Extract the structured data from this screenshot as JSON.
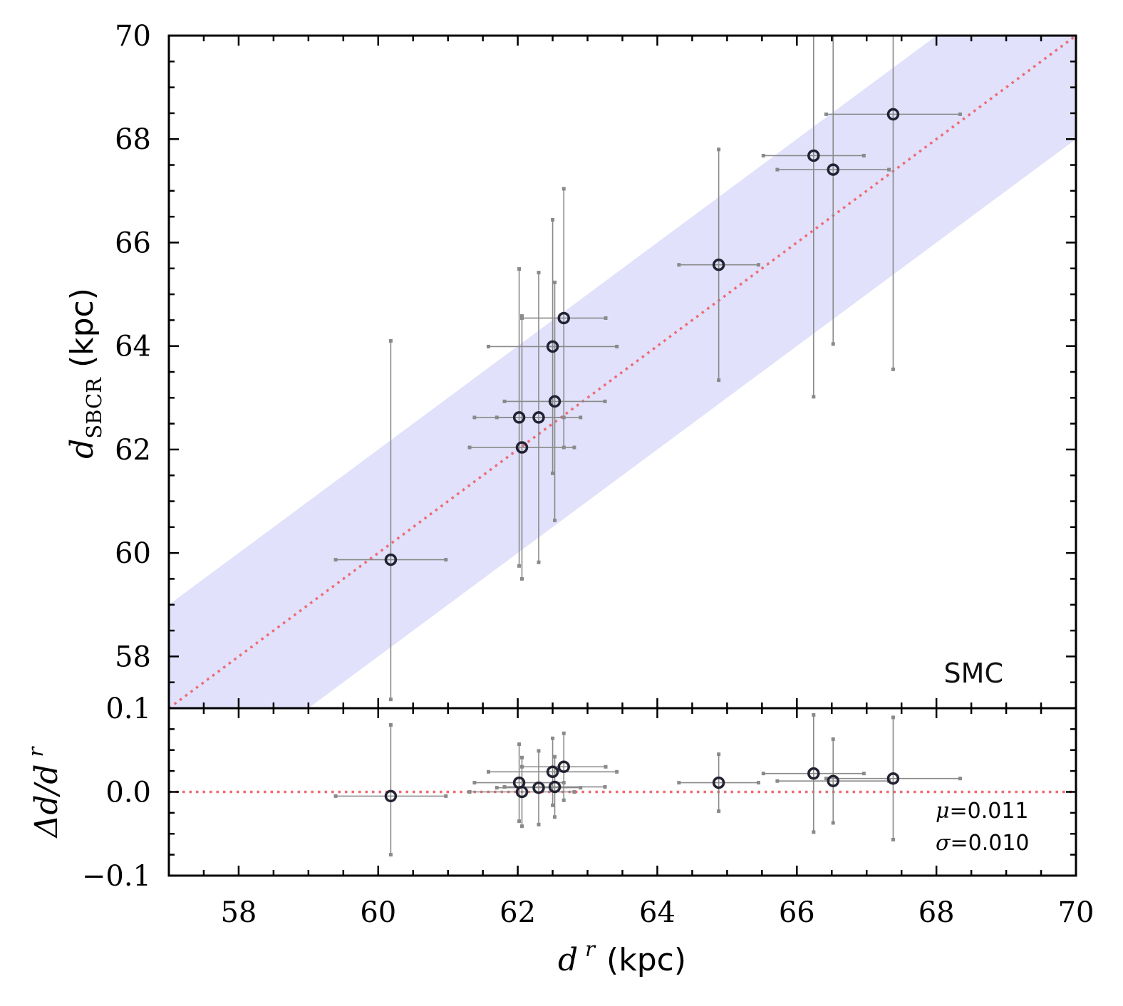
{
  "chart_data": [
    {
      "panel": "main",
      "type": "scatter",
      "xlabel": {
        "var": "d",
        "sup": "r",
        "unit": "(kpc)"
      },
      "ylabel": {
        "var": "d",
        "sub": "SBCR",
        "unit": "(kpc)"
      },
      "xlim": [
        57,
        70
      ],
      "ylim": [
        57,
        70
      ],
      "xticks": [
        "58",
        "60",
        "62",
        "64",
        "66",
        "68",
        "70"
      ],
      "yticks": [
        "58",
        "60",
        "62",
        "64",
        "66",
        "68",
        "70"
      ],
      "annotation": "SMC",
      "one_to_one_line": {
        "color": "#ef6b73",
        "style": "dotted"
      },
      "band": {
        "half_width": 2,
        "color": "#e1e1fb"
      },
      "points": [
        {
          "x": 60.18,
          "y": 59.87,
          "xerr": 0.79,
          "yerr_lo": 2.7,
          "yerr_hi": 4.23
        },
        {
          "x": 62.02,
          "y": 62.62,
          "xerr": 0.64,
          "yerr_lo": 2.87,
          "yerr_hi": 2.87
        },
        {
          "x": 62.06,
          "y": 62.04,
          "xerr": 0.75,
          "yerr_lo": 2.54,
          "yerr_hi": 2.54
        },
        {
          "x": 62.3,
          "y": 62.62,
          "xerr": 0.6,
          "yerr_lo": 2.8,
          "yerr_hi": 2.8
        },
        {
          "x": 62.5,
          "y": 63.99,
          "xerr": 0.92,
          "yerr_lo": 2.45,
          "yerr_hi": 2.45
        },
        {
          "x": 62.53,
          "y": 62.93,
          "xerr": 0.72,
          "yerr_lo": 2.3,
          "yerr_hi": 2.3
        },
        {
          "x": 62.66,
          "y": 64.54,
          "xerr": 0.6,
          "yerr_lo": 2.5,
          "yerr_hi": 2.5
        },
        {
          "x": 64.88,
          "y": 65.57,
          "xerr": 0.57,
          "yerr_lo": 2.23,
          "yerr_hi": 2.23
        },
        {
          "x": 66.24,
          "y": 67.68,
          "xerr": 0.72,
          "yerr_lo": 4.66,
          "yerr_hi": 4.66
        },
        {
          "x": 66.52,
          "y": 67.41,
          "xerr": 0.8,
          "yerr_lo": 3.37,
          "yerr_hi": 3.37
        },
        {
          "x": 67.38,
          "y": 68.48,
          "xerr": 0.96,
          "yerr_lo": 4.93,
          "yerr_hi": 4.93
        }
      ]
    },
    {
      "panel": "residual",
      "type": "scatter",
      "xlabel": {
        "var": "d",
        "sup": "r",
        "unit": "(kpc)"
      },
      "ylabel": {
        "text": "Δd/d",
        "sup": "r"
      },
      "xlim": [
        57,
        70
      ],
      "ylim": [
        -0.1,
        0.1
      ],
      "xticks": [
        "58",
        "60",
        "62",
        "64",
        "66",
        "68",
        "70"
      ],
      "yticks": [
        "−0.1",
        "0.0",
        "0.1"
      ],
      "zero_line": {
        "color": "#ef6b73",
        "style": "dotted"
      },
      "stats": {
        "mu_symbol": "μ",
        "mu": "=0.011",
        "sigma_symbol": "σ",
        "sigma": "=0.010"
      },
      "points": [
        {
          "x": 60.18,
          "y": -0.005,
          "xerr": 0.79,
          "yerr_lo": 0.07,
          "yerr_hi": 0.085
        },
        {
          "x": 62.02,
          "y": 0.011,
          "xerr": 0.64,
          "yerr_lo": 0.046,
          "yerr_hi": 0.046
        },
        {
          "x": 62.06,
          "y": 0.0,
          "xerr": 0.75,
          "yerr_lo": 0.041,
          "yerr_hi": 0.041
        },
        {
          "x": 62.3,
          "y": 0.005,
          "xerr": 0.6,
          "yerr_lo": 0.044,
          "yerr_hi": 0.044
        },
        {
          "x": 62.5,
          "y": 0.024,
          "xerr": 0.92,
          "yerr_lo": 0.04,
          "yerr_hi": 0.04
        },
        {
          "x": 62.53,
          "y": 0.006,
          "xerr": 0.72,
          "yerr_lo": 0.036,
          "yerr_hi": 0.036
        },
        {
          "x": 62.66,
          "y": 0.03,
          "xerr": 0.6,
          "yerr_lo": 0.04,
          "yerr_hi": 0.04
        },
        {
          "x": 64.88,
          "y": 0.011,
          "xerr": 0.57,
          "yerr_lo": 0.034,
          "yerr_hi": 0.034
        },
        {
          "x": 66.24,
          "y": 0.022,
          "xerr": 0.72,
          "yerr_lo": 0.07,
          "yerr_hi": 0.07
        },
        {
          "x": 66.52,
          "y": 0.013,
          "xerr": 0.8,
          "yerr_lo": 0.05,
          "yerr_hi": 0.05
        },
        {
          "x": 67.38,
          "y": 0.016,
          "xerr": 0.96,
          "yerr_lo": 0.073,
          "yerr_hi": 0.073
        }
      ]
    }
  ]
}
